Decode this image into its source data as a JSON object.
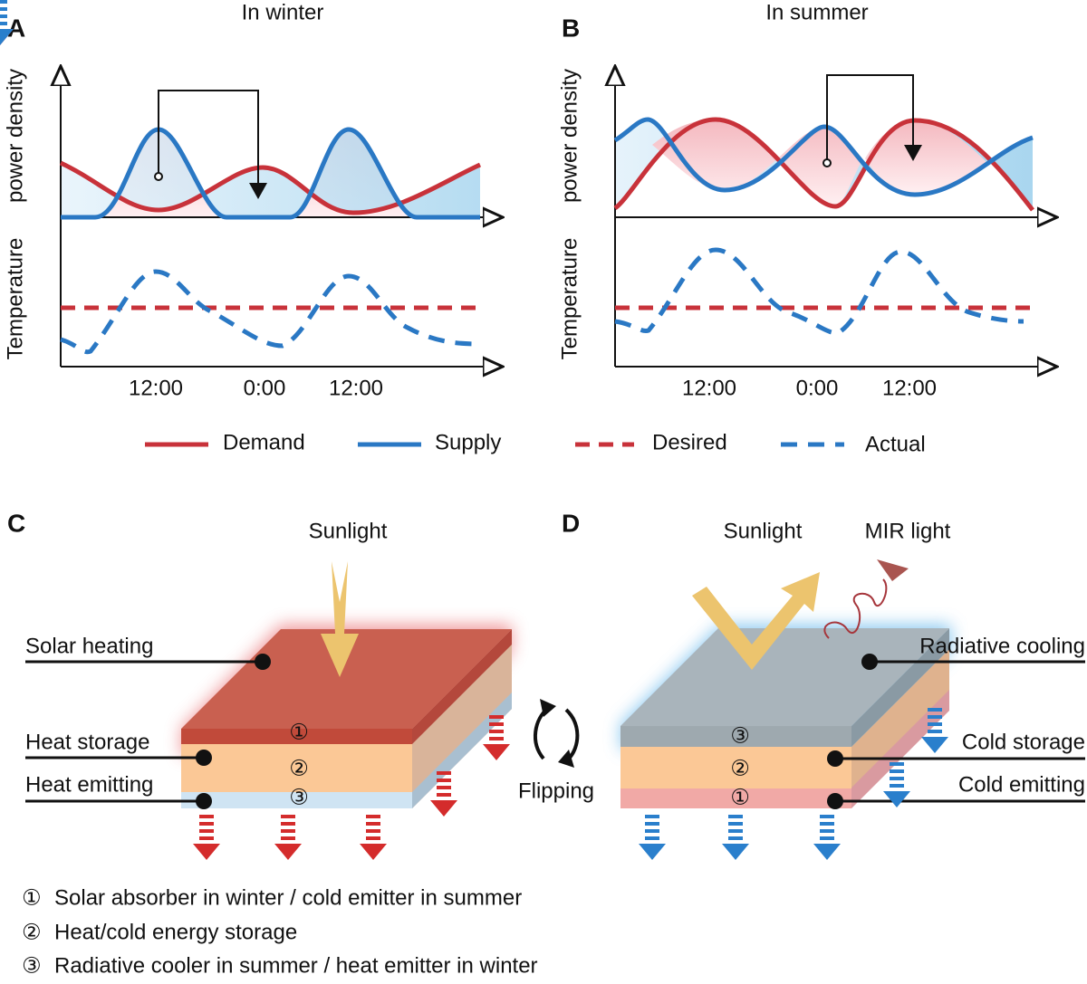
{
  "panels": [
    {
      "letter": "A",
      "title": "In winter",
      "y_labels": [
        "power density",
        "Temperature"
      ],
      "x_ticks": [
        "12:00",
        "0:00",
        "12:00"
      ]
    },
    {
      "letter": "B",
      "title": "In summer",
      "y_labels": [
        "power density",
        "Temperature"
      ],
      "x_ticks": [
        "12:00",
        "0:00",
        "12:00"
      ]
    }
  ],
  "legend": [
    "Demand",
    "Supply",
    "Desired",
    "Actual"
  ],
  "panel_c": {
    "letter": "C",
    "sunlight": "Sunlight",
    "labels": [
      "Solar heating",
      "Heat storage",
      "Heat emitting"
    ],
    "layers": [
      "①",
      "②",
      "③"
    ]
  },
  "flipping": "Flipping",
  "panel_d": {
    "letter": "D",
    "sunlight": "Sunlight",
    "mir": "MIR light",
    "labels": [
      "Radiative cooling",
      "Cold storage",
      "Cold emitting"
    ],
    "layers": [
      "③",
      "②",
      "①"
    ]
  },
  "notes": [
    {
      "symbol": "①",
      "text": "Solar absorber in winter / cold emitter in summer"
    },
    {
      "symbol": "②",
      "text": "Heat/cold energy storage"
    },
    {
      "symbol": "③",
      "text": "Radiative cooler in summer / heat emitter in winter"
    }
  ]
}
